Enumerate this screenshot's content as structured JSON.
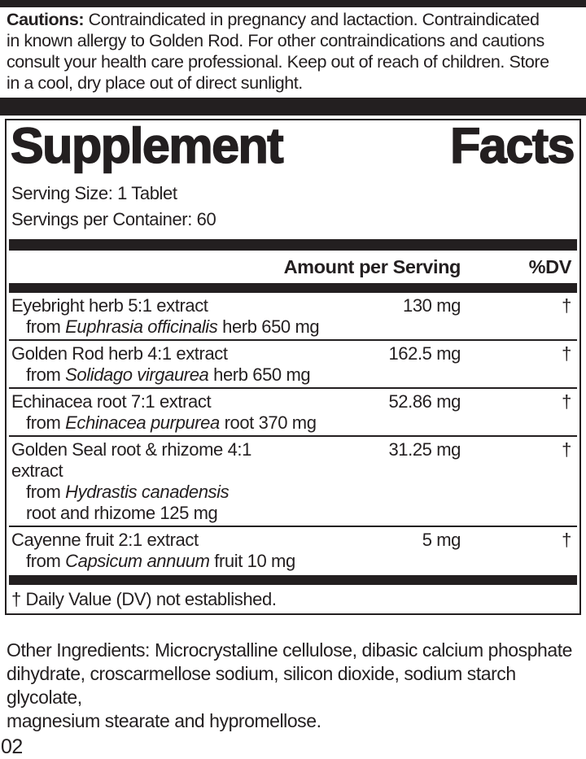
{
  "colors": {
    "ink": "#231f20",
    "background": "#ffffff"
  },
  "cautions": {
    "heading": "Cautions:",
    "line1": "Contraindicated in pregnancy and lactaction. Contraindicated",
    "line2": "in known allergy to Golden Rod. For other contraindications and cautions",
    "line3": "consult your health care professional. Keep out of reach of children. Store",
    "line4": "in a cool, dry place out of direct sunlight."
  },
  "facts": {
    "title_words": [
      "Supplement",
      "Facts"
    ],
    "serving_size": "Serving Size: 1 Tablet",
    "servings_per_container": "Servings per Container: 60",
    "header": {
      "amount": "Amount per Serving",
      "dv": "%DV"
    },
    "rows": [
      {
        "name": "Eyebright herb 5:1 extract",
        "amount": "130 mg",
        "dv": "†",
        "from": "from",
        "latin": "Euphrasia officinalis",
        "suffix": "herb 650 mg"
      },
      {
        "name": "Golden Rod herb 4:1 extract",
        "amount": "162.5 mg",
        "dv": "†",
        "from": "from",
        "latin": "Solidago virgaurea",
        "suffix": "herb 650 mg"
      },
      {
        "name": "Echinacea root 7:1 extract",
        "amount": "52.86 mg",
        "dv": "†",
        "from": "from",
        "latin": "Echinacea purpurea",
        "suffix": "root 370 mg"
      },
      {
        "name": "Golden Seal root & rhizome 4:1 extract",
        "amount": "31.25 mg",
        "dv": "†",
        "from": "from",
        "latin": "Hydrastis canadensis",
        "suffix": "",
        "extra_line": "root and rhizome 125 mg"
      },
      {
        "name": "Cayenne fruit 2:1 extract",
        "amount": "5 mg",
        "dv": "†",
        "from": "from",
        "latin": "Capsicum annuum",
        "suffix": "fruit 10 mg"
      }
    ],
    "footnote": "† Daily Value (DV) not established."
  },
  "other_ingredients": {
    "lines": [
      "Other Ingredients: Microcrystalline cellulose, dibasic calcium phosphate",
      "dihydrate, croscarmellose sodium, silicon dioxide, sodium starch glycolate,",
      "magnesium stearate and hypromellose."
    ]
  },
  "footer_code": "02"
}
